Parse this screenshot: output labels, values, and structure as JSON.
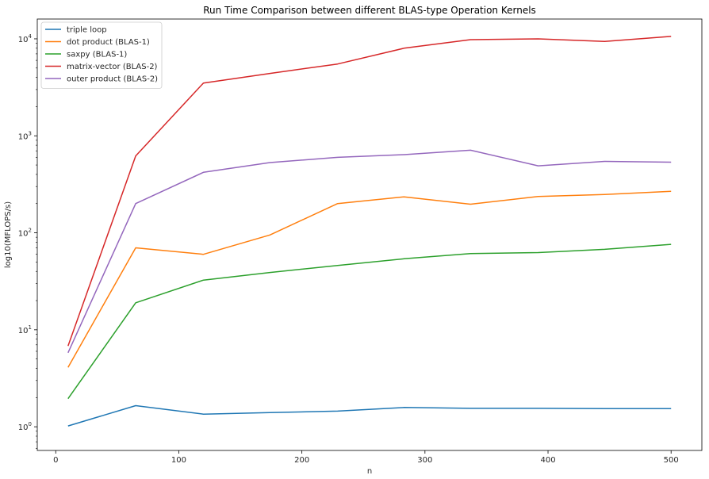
{
  "chart_data": {
    "type": "line",
    "title": "Run Time Comparison between different BLAS-type Operation Kernels",
    "xlabel": "n",
    "ylabel": "log10(MFLOPS/s)",
    "xlim": [
      -15,
      525
    ],
    "ylim": [
      0.57,
      16000
    ],
    "yscale": "log",
    "x_ticks": [
      0,
      100,
      200,
      300,
      400,
      500
    ],
    "y_ticks": [
      {
        "value": 1,
        "base": "10",
        "exp": "0"
      },
      {
        "value": 10,
        "base": "10",
        "exp": "1"
      },
      {
        "value": 100,
        "base": "10",
        "exp": "2"
      },
      {
        "value": 1000,
        "base": "10",
        "exp": "3"
      },
      {
        "value": 10000,
        "base": "10",
        "exp": "4"
      }
    ],
    "grid": false,
    "legend_position": "top-left",
    "x": [
      10,
      65,
      120,
      174,
      229,
      283,
      337,
      392,
      446,
      500
    ],
    "series": [
      {
        "name": "triple loop",
        "color": "#1f77b4",
        "values": [
          1.02,
          1.65,
          1.35,
          1.4,
          1.45,
          1.58,
          1.55,
          1.55,
          1.54,
          1.54
        ]
      },
      {
        "name": "dot product (BLAS-1)",
        "color": "#ff7f0e",
        "values": [
          4.1,
          70,
          60,
          95,
          200,
          235,
          197,
          237,
          248,
          268
        ]
      },
      {
        "name": "saxpy (BLAS-1)",
        "color": "#2ca02c",
        "values": [
          1.95,
          19,
          32.5,
          39,
          46,
          54,
          61,
          62.5,
          67.5,
          76
        ]
      },
      {
        "name": "matrix-vector (BLAS-2)",
        "color": "#d62728",
        "values": [
          6.8,
          620,
          3500,
          4400,
          5500,
          8000,
          9800,
          10000,
          9400,
          10600
        ]
      },
      {
        "name": "outer product (BLAS-2)",
        "color": "#9467bd",
        "values": [
          5.8,
          200,
          420,
          530,
          600,
          640,
          710,
          490,
          545,
          535
        ]
      }
    ]
  }
}
